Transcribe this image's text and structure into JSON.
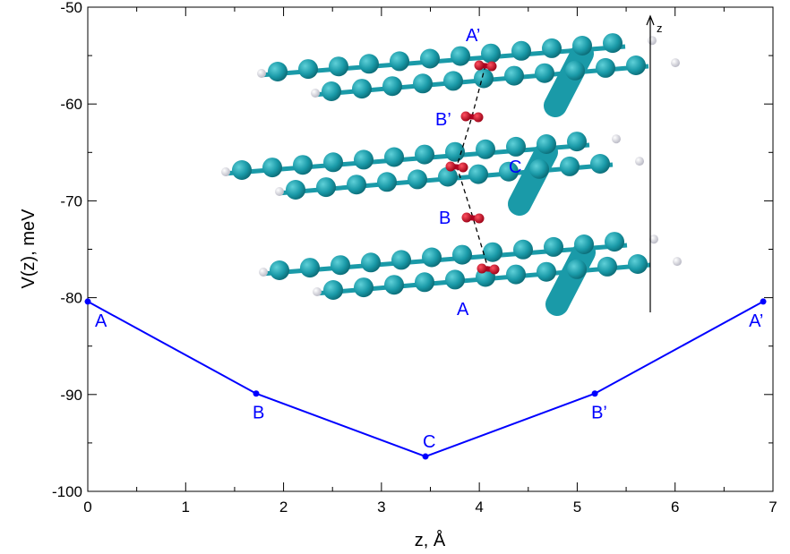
{
  "chart_data": {
    "type": "line",
    "xlabel": "z, Å",
    "ylabel": "V(z), meV",
    "xlim": [
      0,
      7
    ],
    "ylim": [
      -100,
      -50
    ],
    "xticks": [
      0,
      1,
      2,
      3,
      4,
      5,
      6,
      7
    ],
    "yticks": [
      -100,
      -90,
      -80,
      -70,
      -60,
      -50
    ],
    "grid": false,
    "series": [
      {
        "x": [
          0,
          1.72,
          3.45,
          5.18,
          6.9
        ],
        "y": [
          -80.4,
          -89.9,
          -96.4,
          -89.9,
          -80.4
        ],
        "point_labels": [
          "A",
          "B",
          "C",
          "B’",
          "A’"
        ],
        "color": "#0000ff"
      }
    ],
    "inset": {
      "description": "molecular structure",
      "axis_label": "z",
      "labels": [
        "A’",
        "B’",
        "C",
        "B",
        "A"
      ]
    }
  }
}
